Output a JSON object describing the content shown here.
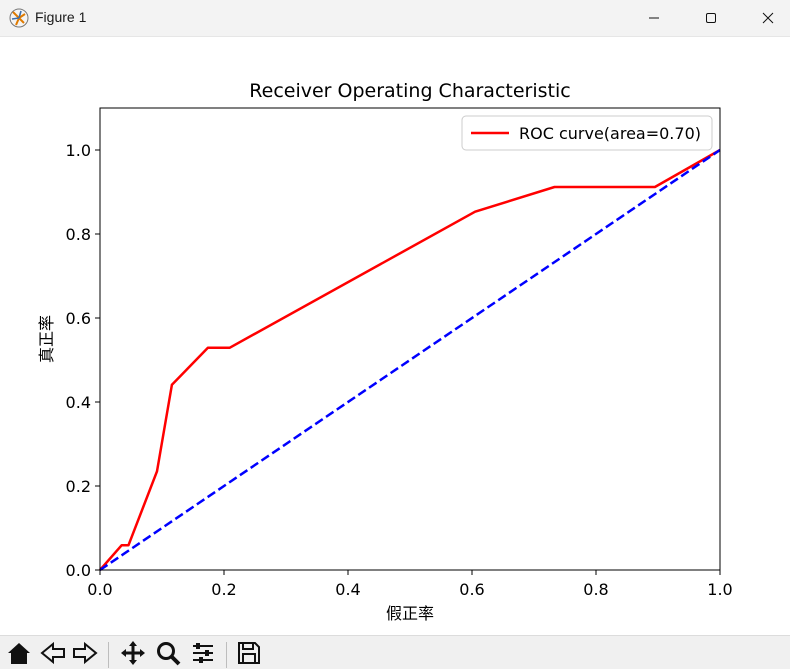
{
  "window": {
    "title": "Figure 1"
  },
  "toolbar": {
    "buttons": [
      "home-icon",
      "back-icon",
      "forward-icon",
      "pan-icon",
      "zoom-icon",
      "configure-subplots-icon",
      "save-icon"
    ]
  },
  "chart_data": {
    "type": "line",
    "title": "Receiver Operating Characteristic",
    "xlabel": "假正率",
    "ylabel": "真正率",
    "xlim": [
      0.0,
      1.0
    ],
    "ylim": [
      0.0,
      1.1
    ],
    "xticks": [
      "0.0",
      "0.2",
      "0.4",
      "0.6",
      "0.8",
      "1.0"
    ],
    "yticks": [
      "0.0",
      "0.2",
      "0.4",
      "0.6",
      "0.8",
      "1.0"
    ],
    "grid": false,
    "legend_position": "upper-right",
    "series": [
      {
        "name": "ROC curve(area=0.70)",
        "color": "#ff0000",
        "style": "solid",
        "x": [
          0.0,
          0.035,
          0.046,
          0.092,
          0.116,
          0.174,
          0.209,
          0.605,
          0.733,
          0.895,
          1.0
        ],
        "y": [
          0.0,
          0.059,
          0.059,
          0.235,
          0.441,
          0.529,
          0.529,
          0.853,
          0.912,
          0.912,
          1.0
        ]
      },
      {
        "name": "",
        "color": "#0000ff",
        "style": "dashed",
        "x": [
          0.0,
          1.0
        ],
        "y": [
          0.0,
          1.0
        ]
      }
    ]
  }
}
